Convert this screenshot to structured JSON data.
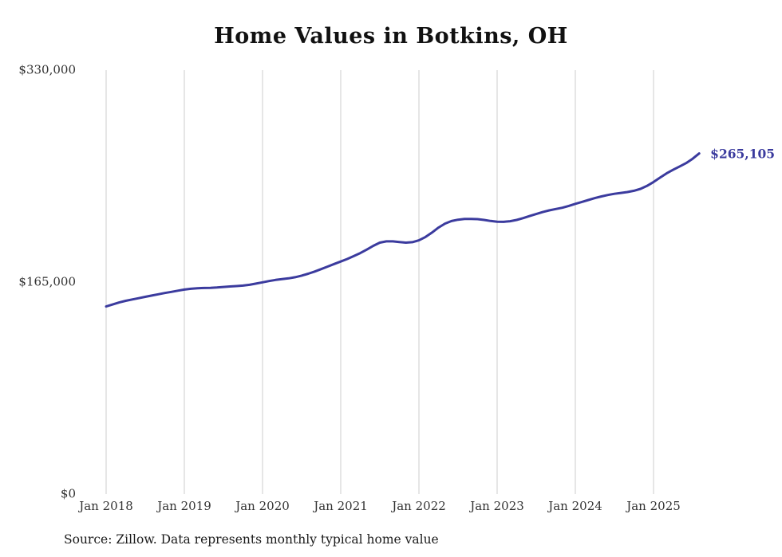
{
  "chart": {
    "grid_color": "#cccccc",
    "axis_label_color": "#333333",
    "title_color": "#111111"
  },
  "chart_data": {
    "type": "line",
    "title": "Home Values in Botkins, OH",
    "xlabel": "",
    "ylabel": "",
    "ylim": [
      0,
      330000
    ],
    "grid": "vertical-only",
    "legend_position": "none",
    "line_color": "#3b3b9e",
    "line_width": 3,
    "last_point_label": "$265,105",
    "source_note": "Source: Zillow. Data represents monthly typical home value",
    "yticks": [
      {
        "value": 0,
        "label": "$0"
      },
      {
        "value": 165000,
        "label": "$165,000"
      },
      {
        "value": 330000,
        "label": "$330,000"
      }
    ],
    "xticks": [
      "Jan 2018",
      "Jan 2019",
      "Jan 2020",
      "Jan 2021",
      "Jan 2022",
      "Jan 2023",
      "Jan 2024",
      "Jan 2025"
    ],
    "xtick_every": 12,
    "series_name": "Typical home value (monthly)",
    "x": [
      "2018-01",
      "2018-02",
      "2018-03",
      "2018-04",
      "2018-05",
      "2018-06",
      "2018-07",
      "2018-08",
      "2018-09",
      "2018-10",
      "2018-11",
      "2018-12",
      "2019-01",
      "2019-02",
      "2019-03",
      "2019-04",
      "2019-05",
      "2019-06",
      "2019-07",
      "2019-08",
      "2019-09",
      "2019-10",
      "2019-11",
      "2019-12",
      "2020-01",
      "2020-02",
      "2020-03",
      "2020-04",
      "2020-05",
      "2020-06",
      "2020-07",
      "2020-08",
      "2020-09",
      "2020-10",
      "2020-11",
      "2020-12",
      "2021-01",
      "2021-02",
      "2021-03",
      "2021-04",
      "2021-05",
      "2021-06",
      "2021-07",
      "2021-08",
      "2021-09",
      "2021-10",
      "2021-11",
      "2021-12",
      "2022-01",
      "2022-02",
      "2022-03",
      "2022-04",
      "2022-05",
      "2022-06",
      "2022-07",
      "2022-08",
      "2022-09",
      "2022-10",
      "2022-11",
      "2022-12",
      "2023-01",
      "2023-02",
      "2023-03",
      "2023-04",
      "2023-05",
      "2023-06",
      "2023-07",
      "2023-08",
      "2023-09",
      "2023-10",
      "2023-11",
      "2023-12",
      "2024-01",
      "2024-02",
      "2024-03",
      "2024-04",
      "2024-05",
      "2024-06",
      "2024-07",
      "2024-08",
      "2024-09",
      "2024-10",
      "2024-11",
      "2024-12",
      "2025-01",
      "2025-02",
      "2025-03",
      "2025-04",
      "2025-05",
      "2025-06",
      "2025-07",
      "2025-08"
    ],
    "values": [
      146000,
      147600,
      149100,
      150400,
      151500,
      152500,
      153500,
      154500,
      155500,
      156500,
      157400,
      158300,
      159200,
      159800,
      160200,
      160400,
      160500,
      160800,
      161200,
      161600,
      161900,
      162300,
      162900,
      163800,
      164800,
      165800,
      166700,
      167300,
      167900,
      168800,
      170000,
      171500,
      173200,
      175100,
      177100,
      179100,
      181000,
      183000,
      185200,
      187600,
      190300,
      193200,
      195700,
      196700,
      196700,
      196200,
      195700,
      196100,
      197500,
      200100,
      203500,
      207400,
      210500,
      212500,
      213600,
      214100,
      214200,
      214000,
      213400,
      212600,
      212000,
      211900,
      212400,
      213400,
      214800,
      216400,
      218000,
      219500,
      220800,
      221900,
      222900,
      224300,
      225900,
      227400,
      228900,
      230400,
      231700,
      232800,
      233700,
      234400,
      235100,
      236100,
      237600,
      239900,
      242900,
      246300,
      249600,
      252400,
      255000,
      257600,
      261000,
      265105
    ]
  }
}
